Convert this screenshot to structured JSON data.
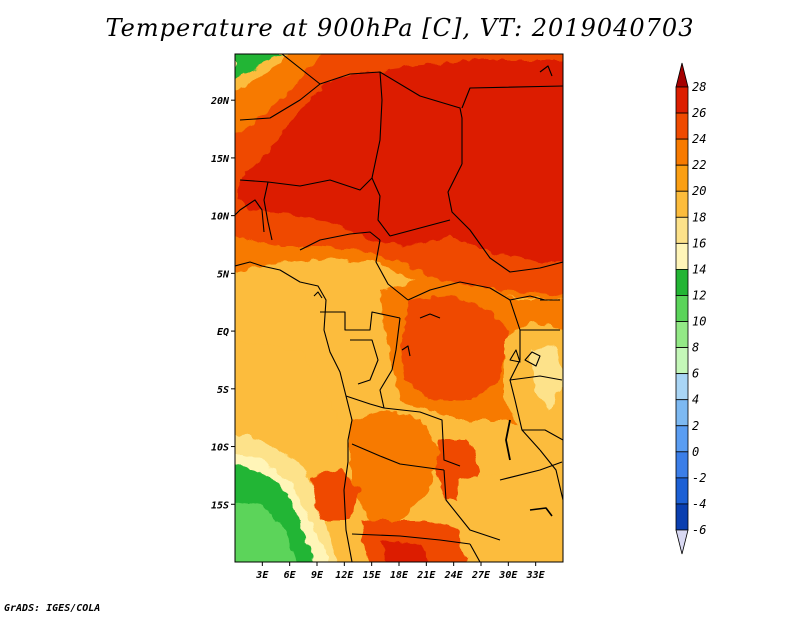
{
  "title": "Temperature at 900hPa [C], VT: 2019040703",
  "credit": "GrADS: IGES/COLA",
  "map": {
    "lon_range": [
      0,
      36
    ],
    "lat_range": [
      -20,
      24
    ],
    "lon_ticks": [
      "3E",
      "6E",
      "9E",
      "12E",
      "15E",
      "18E",
      "21E",
      "24E",
      "27E",
      "30E",
      "33E"
    ],
    "lat_ticks": [
      "20N",
      "15N",
      "10N",
      "5N",
      "EQ",
      "5S",
      "10S",
      "15S"
    ]
  },
  "colorbar": {
    "labels": [
      "28",
      "26",
      "24",
      "22",
      "20",
      "18",
      "16",
      "14",
      "12",
      "10",
      "8",
      "6",
      "4",
      "2",
      "0",
      "-2",
      "-4",
      "-6"
    ],
    "colors": [
      "#a50000",
      "#dc1e00",
      "#ef4a00",
      "#f77a00",
      "#fb9f13",
      "#fcbc3c",
      "#fde28a",
      "#fff5b8",
      "#23b534",
      "#5bd45a",
      "#93e986",
      "#c4f7b8",
      "#a9d5f5",
      "#7db9f2",
      "#5a9df2",
      "#3b7ee8",
      "#1c60d5",
      "#0a3fb0",
      "#001468",
      "#d8d8f2"
    ]
  }
}
